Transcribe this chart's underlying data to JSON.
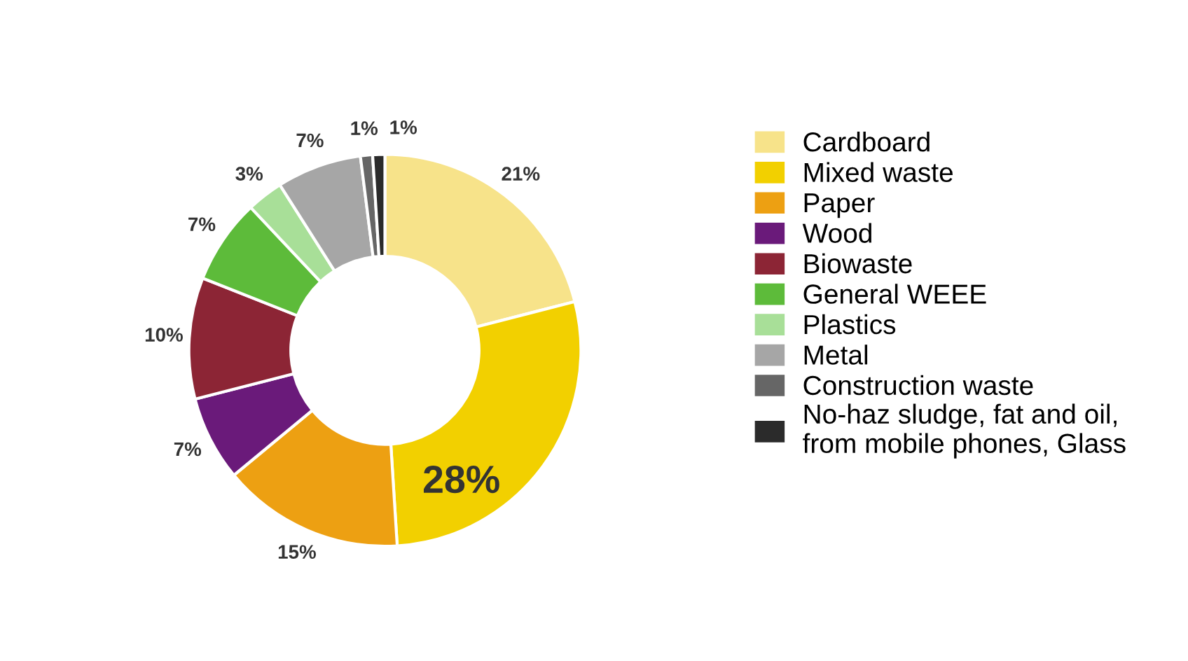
{
  "chart_data": {
    "type": "donut",
    "categories": [
      "Cardboard",
      "Mixed waste",
      "Paper",
      "Wood",
      "Biowaste",
      "General WEEE",
      "Plastics",
      "Metal",
      "Construction waste",
      "No-haz sludge, fat and oil,\nfrom mobile phones, Glass"
    ],
    "values": [
      21,
      28,
      15,
      7,
      10,
      7,
      3,
      7,
      1,
      1
    ],
    "colors": [
      "#f7e38a",
      "#f2d000",
      "#eda012",
      "#6a1a7a",
      "#8c2535",
      "#5dbb3a",
      "#a8df98",
      "#a6a6a6",
      "#666666",
      "#2b2b2b"
    ],
    "value_labels": [
      "21%",
      "28%",
      "15%",
      "7%",
      "10%",
      "7%",
      "3%",
      "7%",
      "1%",
      "1%"
    ],
    "legend": "right"
  }
}
